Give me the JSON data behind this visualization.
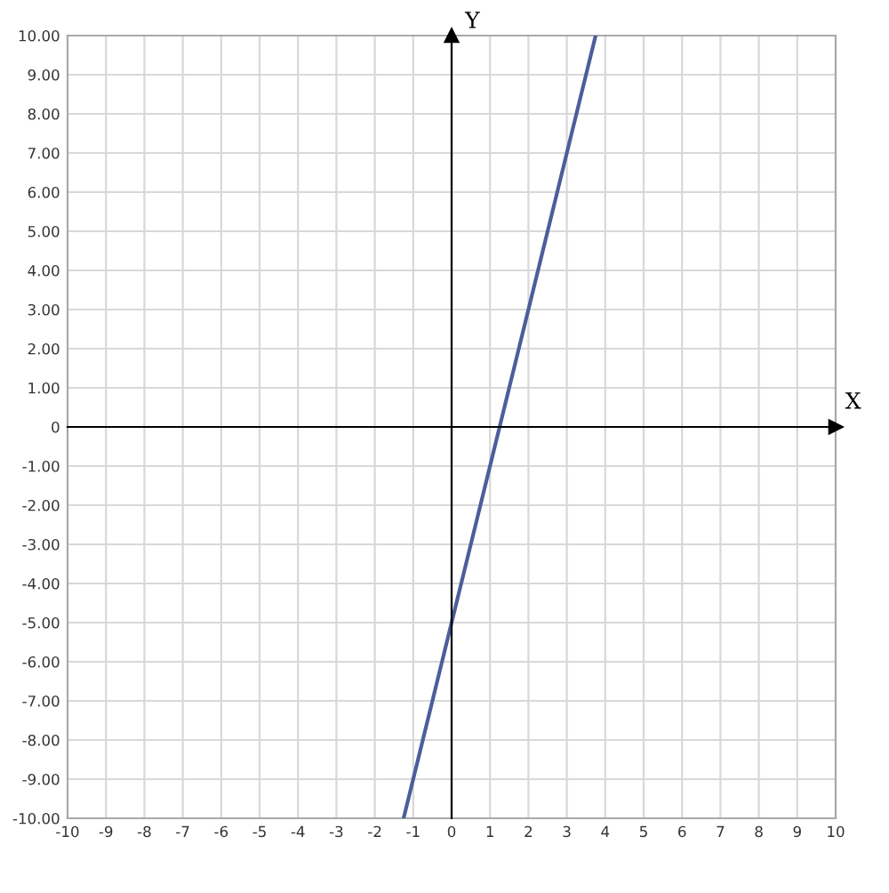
{
  "chart_data": {
    "type": "line",
    "xlabel": "X",
    "ylabel": "Y",
    "x": [
      -1.25,
      3.75
    ],
    "series": [
      {
        "color": "#4a5f9a",
        "values": [
          -10,
          10
        ]
      }
    ],
    "xlim": [
      -10,
      10
    ],
    "ylim": [
      -10,
      10
    ],
    "xticks": [
      -10,
      -9,
      -8,
      -7,
      -6,
      -5,
      -4,
      -3,
      -2,
      -1,
      0,
      1,
      2,
      3,
      4,
      5,
      6,
      7,
      8,
      9,
      10
    ],
    "yticks": [
      {
        "value": -10,
        "label": "-10.00"
      },
      {
        "value": -9,
        "label": "-9.00"
      },
      {
        "value": -8,
        "label": "-8.00"
      },
      {
        "value": -7,
        "label": "-7.00"
      },
      {
        "value": -6,
        "label": "-6.00"
      },
      {
        "value": -5,
        "label": "-5.00"
      },
      {
        "value": -4,
        "label": "-4.00"
      },
      {
        "value": -3,
        "label": "-3.00"
      },
      {
        "value": -2,
        "label": "-2.00"
      },
      {
        "value": -1,
        "label": "-1.00"
      },
      0,
      {
        "value": 1,
        "label": "1.00"
      },
      {
        "value": 2,
        "label": "2.00"
      },
      {
        "value": 3,
        "label": "3.00"
      },
      {
        "value": 4,
        "label": "4.00"
      },
      {
        "value": 5,
        "label": "5.00"
      },
      {
        "value": 6,
        "label": "6.00"
      },
      {
        "value": 7,
        "label": "7.00"
      },
      {
        "value": 8,
        "label": "8.00"
      },
      {
        "value": 9,
        "label": "9.00"
      },
      {
        "value": 10,
        "label": "10.00"
      }
    ],
    "grid": true
  }
}
